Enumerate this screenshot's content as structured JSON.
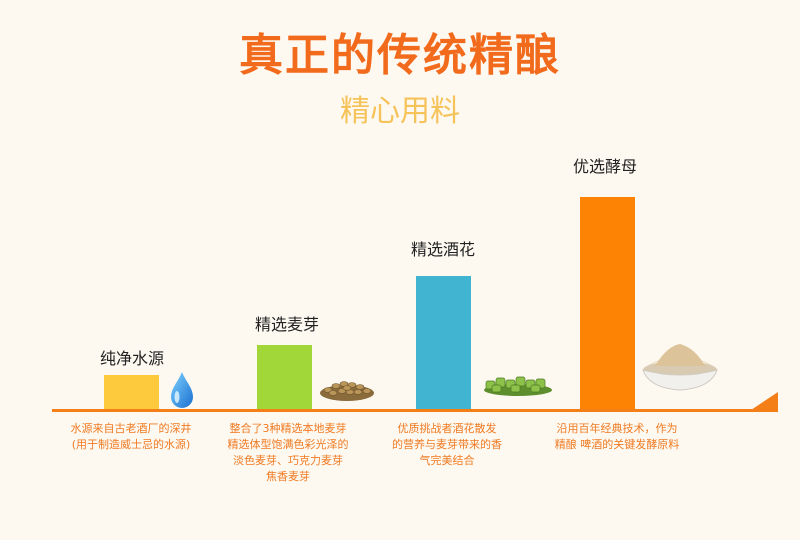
{
  "header": {
    "title": "真正的传统精酿",
    "subtitle": "精心用料"
  },
  "colors": {
    "title": "#f26a1b",
    "subtitle": "#f6c35a",
    "axis": "#f47f17",
    "bar_water": "#fcca3c",
    "bar_malt": "#a2d73a",
    "bar_hops": "#41b4d1",
    "bar_yeast": "#fd8305"
  },
  "ingredients": [
    {
      "label": "纯净水源",
      "desc": "水源来自古老酒厂的深井\n(用于制造威士忌的水源)",
      "icon": "water-drop-icon"
    },
    {
      "label": "精选麦芽",
      "desc": "整合了3种精选本地麦芽\n精选体型饱满色彩光泽的\n淡色麦芽、巧克力麦芽\n焦香麦芽",
      "icon": "malt-grains-icon"
    },
    {
      "label": "精选酒花",
      "desc": "优质挑战者酒花散发\n的营养与麦芽带来的香\n气完美结合",
      "icon": "hops-pellets-icon"
    },
    {
      "label": "优选酵母",
      "desc": "沿用百年经典技术，作为\n精酿 啤酒的关键发酵原料",
      "icon": "yeast-bowl-icon"
    }
  ]
}
